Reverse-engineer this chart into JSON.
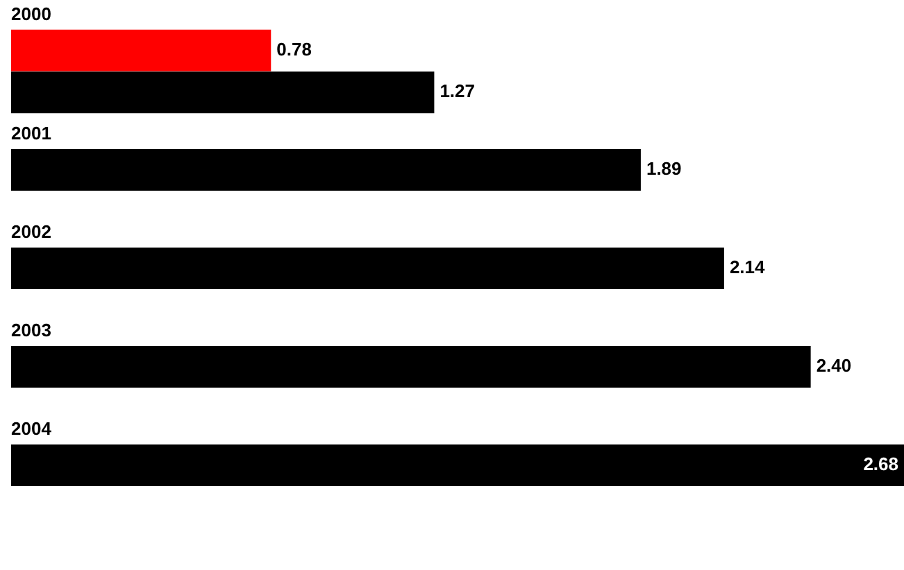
{
  "chart_data": {
    "type": "bar",
    "orientation": "horizontal",
    "categories": [
      "2000",
      "2001",
      "2002",
      "2003",
      "2004"
    ],
    "series": [
      {
        "color": "#ff0000",
        "values": [
          0.78,
          null,
          null,
          null,
          null
        ],
        "value_labels": [
          "0.78",
          null,
          null,
          null,
          null
        ]
      },
      {
        "color": "#000000",
        "values": [
          1.27,
          1.89,
          2.14,
          2.4,
          2.68
        ],
        "value_labels": [
          "1.27",
          "1.89",
          "2.14",
          "2.40",
          "2.68"
        ]
      }
    ],
    "xlim": [
      0,
      2.68
    ],
    "tick_labels": "y",
    "legend": false
  }
}
